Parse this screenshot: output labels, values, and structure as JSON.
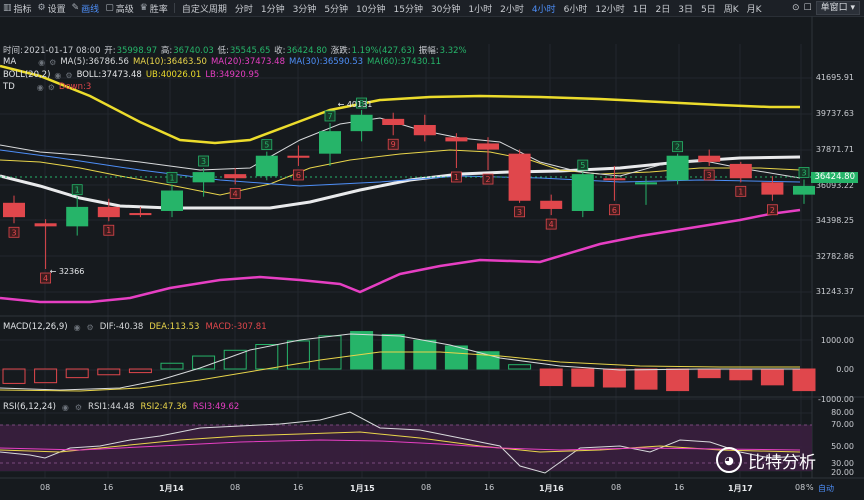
{
  "toolbar": {
    "left_items": [
      {
        "icon": "indicator-icon",
        "label": "指标"
      },
      {
        "icon": "gear-icon",
        "label": "设置"
      },
      {
        "icon": "pencil-icon",
        "label": "画线",
        "active": true
      },
      {
        "icon": "square-icon",
        "label": "高级"
      },
      {
        "icon": "trophy-icon",
        "label": "胜率"
      }
    ],
    "custom_period": "自定义周期",
    "intervals": [
      "分时",
      "1分钟",
      "3分钟",
      "5分钟",
      "10分钟",
      "15分钟",
      "30分钟",
      "1小时",
      "2小时",
      "4小时",
      "6小时",
      "12小时",
      "1日",
      "2日",
      "3日",
      "5日",
      "周K",
      "月K"
    ],
    "active_interval": "4小时",
    "single_window": "单窗口"
  },
  "info_row": {
    "time_label": "时间:",
    "time": "2021-01-17 08:00",
    "open_label": "开:",
    "open": "35998.97",
    "high_label": "高:",
    "high": "36740.03",
    "low_label": "低:",
    "low": "35545.65",
    "close_label": "收:",
    "close": "36424.80",
    "change_label": "涨跌:",
    "change": "1.19%(427.63)",
    "amp_label": "振幅:",
    "amp": "3.32%"
  },
  "ma_line": {
    "name": "MA",
    "ma5": "MA(5):36786.56",
    "ma10": "MA(10):36463.50",
    "ma20": "MA(20):37473.48",
    "ma30": "MA(30):36590.53",
    "ma60": "MA(60):37430.11"
  },
  "boll_line": {
    "name": "BOLL(20,2)",
    "boll": "BOLL:37473.48",
    "ub": "UB:40026.01",
    "lb": "LB:34920.95"
  },
  "td_line": {
    "name": "TD",
    "down": "Down:3"
  },
  "price_axis": [
    "41695.91",
    "39737.63",
    "37871.71",
    "36424.80",
    "36093.22",
    "34398.25",
    "32782.86",
    "31243.37"
  ],
  "current_price": "36424.80",
  "annotations": {
    "high": "← 40131",
    "low": "← 32366"
  },
  "macd": {
    "title": "MACD(12,26,9)",
    "dif": "DIF:-40.38",
    "dea": "DEA:113.53",
    "macd": "MACD:-307.81",
    "axis": [
      "1000.00",
      "0.00",
      "-1000.00"
    ]
  },
  "rsi": {
    "title": "RSI(6,12,24)",
    "rsi1": "RSI1:44.48",
    "rsi2": "RSI2:47.36",
    "rsi3": "RSI3:49.62",
    "axis": [
      "80.00",
      "70.00",
      "50.00",
      "30.00",
      "20.00"
    ]
  },
  "dates": [
    "08",
    "16",
    "1月14",
    "08",
    "16",
    "1月15",
    "08",
    "16",
    "1月16",
    "08",
    "16",
    "1月17",
    "08"
  ],
  "watermark": "比特分析",
  "pct_label": "%",
  "auto_label": "自动",
  "colors": {
    "up": "#26b469",
    "down": "#e0474c",
    "ma5": "#d8dadc",
    "ma10": "#e9d54b",
    "boll_up": "#ecdc2c",
    "boll_mid": "#e9eaec",
    "boll_low": "#e63fc3",
    "rsi_band": "#3a1f3e"
  },
  "chart_data": {
    "type": "candlestick",
    "candles": [
      {
        "o": 35600,
        "h": 35950,
        "l": 34600,
        "c": 34900,
        "td": "3"
      },
      {
        "o": 34600,
        "h": 34800,
        "l": 32366,
        "c": 34450,
        "td": "4"
      },
      {
        "o": 34450,
        "h": 35900,
        "l": 34000,
        "c": 35400,
        "td": "1"
      },
      {
        "o": 35400,
        "h": 35800,
        "l": 34700,
        "c": 34900,
        "td": "1"
      },
      {
        "o": 35100,
        "h": 35400,
        "l": 34900,
        "c": 35000,
        "td": ""
      },
      {
        "o": 35200,
        "h": 36500,
        "l": 34900,
        "c": 36200,
        "td": "1"
      },
      {
        "o": 36600,
        "h": 37300,
        "l": 35900,
        "c": 37100,
        "td": "3"
      },
      {
        "o": 37000,
        "h": 37300,
        "l": 36500,
        "c": 36800,
        "td": "4"
      },
      {
        "o": 36900,
        "h": 38100,
        "l": 36700,
        "c": 37900,
        "td": "5"
      },
      {
        "o": 37900,
        "h": 38400,
        "l": 37400,
        "c": 37800,
        "td": "6"
      },
      {
        "o": 38000,
        "h": 39500,
        "l": 37400,
        "c": 39100,
        "td": "7"
      },
      {
        "o": 39100,
        "h": 40131,
        "l": 38600,
        "c": 39900,
        "td": "8"
      },
      {
        "o": 39700,
        "h": 40000,
        "l": 38900,
        "c": 39400,
        "td": "9"
      },
      {
        "o": 39400,
        "h": 39900,
        "l": 38600,
        "c": 38900,
        "td": ""
      },
      {
        "o": 38800,
        "h": 39000,
        "l": 37300,
        "c": 38600,
        "td": "1"
      },
      {
        "o": 38500,
        "h": 38800,
        "l": 37200,
        "c": 38200,
        "td": "2"
      },
      {
        "o": 38000,
        "h": 38200,
        "l": 35600,
        "c": 35700,
        "td": "3"
      },
      {
        "o": 35700,
        "h": 36000,
        "l": 35000,
        "c": 35300,
        "td": "4"
      },
      {
        "o": 35200,
        "h": 37100,
        "l": 34900,
        "c": 37000,
        "td": "5"
      },
      {
        "o": 36800,
        "h": 37400,
        "l": 35700,
        "c": 36700,
        "td": "6"
      },
      {
        "o": 36500,
        "h": 36800,
        "l": 35500,
        "c": 36600,
        "td": ""
      },
      {
        "o": 36700,
        "h": 38000,
        "l": 36500,
        "c": 37900,
        "td": "2"
      },
      {
        "o": 37900,
        "h": 38200,
        "l": 37400,
        "c": 37600,
        "td": "3"
      },
      {
        "o": 37500,
        "h": 37600,
        "l": 36600,
        "c": 36800,
        "td": "1"
      },
      {
        "o": 36600,
        "h": 36900,
        "l": 35700,
        "c": 36000,
        "td": "2"
      },
      {
        "o": 35999,
        "h": 36740,
        "l": 35546,
        "c": 36425,
        "td": "3"
      }
    ],
    "macd_hist": [
      -200,
      -190,
      -120,
      -80,
      -50,
      80,
      180,
      260,
      340,
      390,
      460,
      520,
      480,
      400,
      320,
      240,
      60,
      -230,
      -240,
      -250,
      -280,
      -300,
      -120,
      -150,
      -220,
      -300
    ]
  }
}
